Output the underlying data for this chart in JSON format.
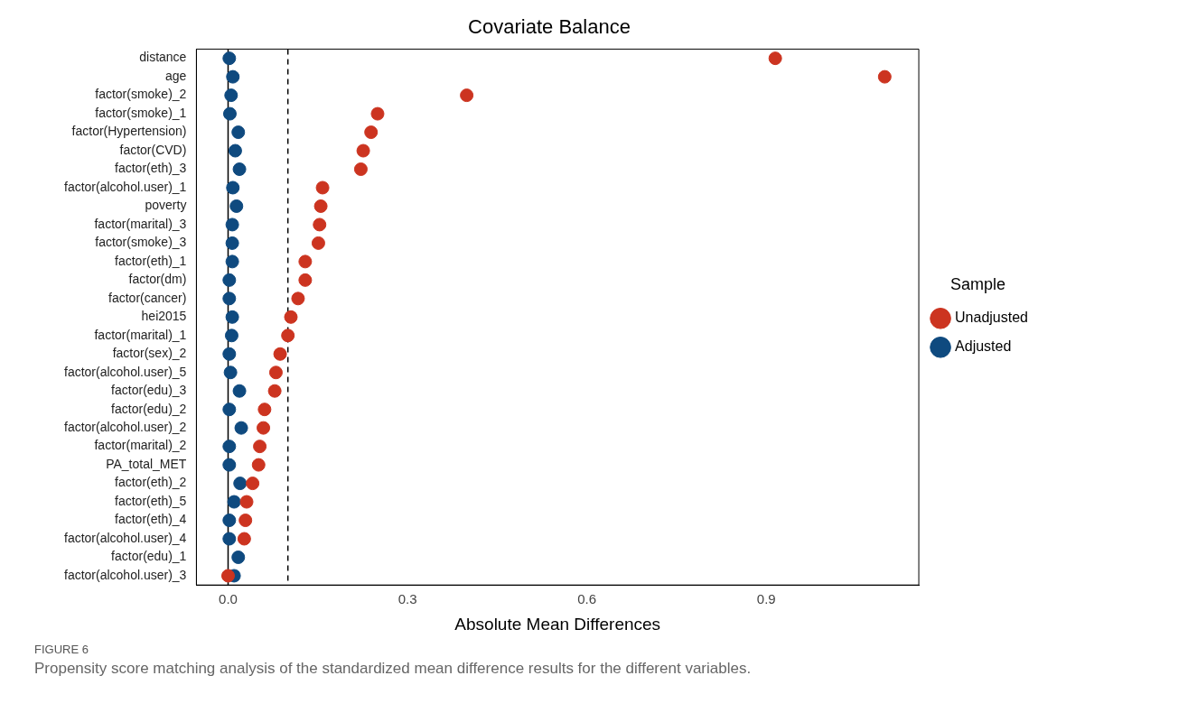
{
  "chart_data": {
    "type": "scatter",
    "title": "Covariate Balance",
    "xlabel": "Absolute Mean Differences",
    "legend_title": "Sample",
    "legend": "right",
    "marker": "circle",
    "grid": false,
    "categories": [
      "distance",
      "age",
      "factor(smoke)_2",
      "factor(smoke)_1",
      "factor(Hypertension)",
      "factor(CVD)",
      "factor(eth)_3",
      "factor(alcohol.user)_1",
      "poverty",
      "factor(marital)_3",
      "factor(smoke)_3",
      "factor(eth)_1",
      "factor(dm)",
      "factor(cancer)",
      "hei2015",
      "factor(marital)_1",
      "factor(sex)_2",
      "factor(alcohol.user)_5",
      "factor(edu)_3",
      "factor(edu)_2",
      "factor(alcohol.user)_2",
      "factor(marital)_2",
      "PA_total_MET",
      "factor(eth)_2",
      "factor(eth)_5",
      "factor(eth)_4",
      "factor(alcohol.user)_4",
      "factor(edu)_1",
      "factor(alcohol.user)_3"
    ],
    "orientation": "horizontal",
    "series": [
      {
        "name": "Unadjusted",
        "color": "#cc3420",
        "values": [
          0.915,
          1.098,
          0.399,
          0.25,
          0.239,
          0.226,
          0.222,
          0.158,
          0.155,
          0.153,
          0.151,
          0.129,
          0.129,
          0.117,
          0.105,
          0.1,
          0.087,
          0.08,
          0.078,
          0.061,
          0.059,
          0.053,
          0.051,
          0.041,
          0.031,
          0.029,
          0.027,
          null,
          0.0
        ]
      },
      {
        "name": "Adjusted",
        "color": "#0f4a7f",
        "values": [
          0.002,
          0.008,
          0.005,
          0.003,
          0.017,
          0.012,
          0.019,
          0.008,
          0.014,
          0.007,
          0.007,
          0.007,
          0.002,
          0.002,
          0.007,
          0.006,
          0.002,
          0.004,
          0.019,
          0.002,
          0.022,
          0.002,
          0.002,
          0.02,
          0.01,
          0.002,
          0.002,
          0.017,
          0.01
        ]
      }
    ],
    "xlim": [
      -0.053,
      1.155
    ],
    "xticks": [
      {
        "value": 0,
        "label": "0.0"
      },
      {
        "value": 0.3,
        "label": "0.3"
      },
      {
        "value": 0.6,
        "label": "0.6"
      },
      {
        "value": 0.9,
        "label": "0.9"
      }
    ],
    "ref_lines": [
      {
        "axis": "x",
        "value": 0,
        "line_style": "solid",
        "color": "#000000"
      },
      {
        "axis": "x",
        "value": 0.1,
        "line_style": "dashed",
        "color": "#000000"
      }
    ],
    "annotations": [
      "FIGURE 6",
      "Propensity score matching analysis of the standardized mean difference results for the different variables."
    ]
  }
}
